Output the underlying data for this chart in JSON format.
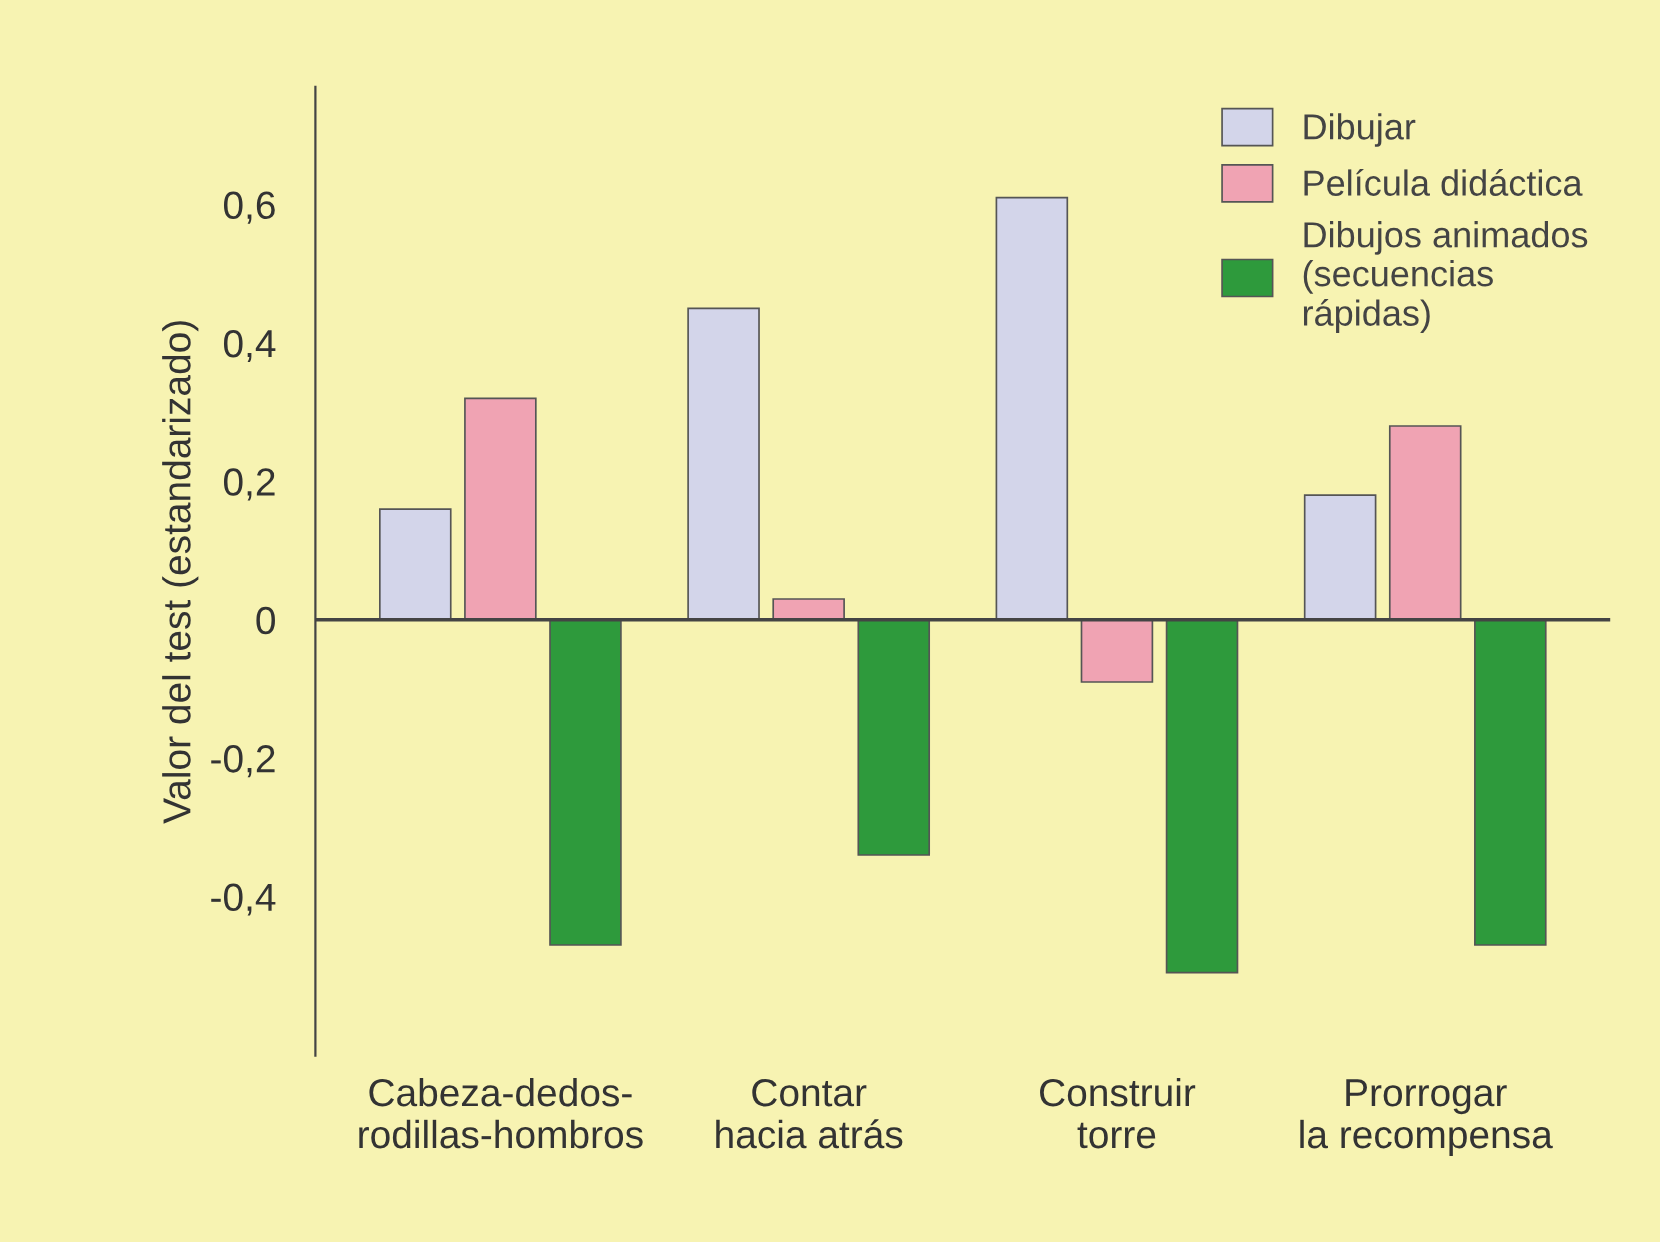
{
  "chart_data": {
    "type": "bar",
    "ylabel": "Valor del test (estandarizado)",
    "categories": [
      "Cabeza-dedos-\nrodillas-hombros",
      "Contar\nhacia atrás",
      "Construir\ntorre",
      "Prorrogar\nla recompensa"
    ],
    "series": [
      {
        "name": "Dibujar",
        "color": "#d3d5ea",
        "values": [
          0.16,
          0.45,
          0.61,
          0.18
        ]
      },
      {
        "name": "Película didáctica",
        "color": "#f0a3b3",
        "values": [
          0.32,
          0.03,
          -0.09,
          0.28
        ]
      },
      {
        "name": "Dibujos animados\n(secuencias\nrápidas)",
        "color": "#2e9a3c",
        "values": [
          -0.47,
          -0.34,
          -0.51,
          -0.47
        ]
      }
    ],
    "ylim": [
      -0.63,
      0.77
    ],
    "yticks": [
      {
        "value": -0.4,
        "label": "-0,4"
      },
      {
        "value": -0.2,
        "label": "-0,2"
      },
      0,
      {
        "value": 0.2,
        "label": "0,2"
      },
      {
        "value": 0.4,
        "label": "0,4"
      },
      {
        "value": 0.6,
        "label": "0,6"
      }
    ],
    "ref_lines": [
      {
        "axis": "y",
        "value": 0,
        "color": "#444444"
      }
    ],
    "grid": false,
    "legend": "top right"
  }
}
